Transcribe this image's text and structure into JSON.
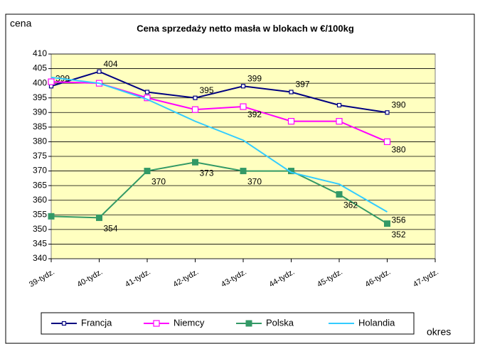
{
  "chart_data": {
    "type": "line",
    "title": "Cena sprzedaży netto masła w blokach w €/100kg",
    "y_label": "cena",
    "x_label": "okres",
    "categories": [
      "39-tydz.",
      "40-tydz.",
      "41-tydz.",
      "42-tydz.",
      "43-tydz.",
      "44-tydz.",
      "45-tydz.",
      "46-tydz.",
      "47-tydz."
    ],
    "series": [
      {
        "name": "Francja",
        "color": "#000080",
        "marker": "square",
        "values": [
          399,
          404,
          397,
          395,
          399,
          397,
          392.5,
          390,
          null
        ],
        "value_labels": [
          "399",
          "404",
          null,
          "395",
          "399",
          "397",
          null,
          "390",
          null
        ]
      },
      {
        "name": "Niemcy",
        "color": "#ff00ff",
        "marker": "hollow-square",
        "values": [
          400.5,
          400,
          395,
          391,
          392,
          387,
          387,
          380,
          null
        ],
        "value_labels": [
          null,
          null,
          null,
          null,
          "392",
          null,
          null,
          "380",
          null
        ]
      },
      {
        "name": "Polska",
        "color": "#339966",
        "marker": "filled-square",
        "values": [
          354.5,
          354,
          370,
          373,
          370,
          370,
          362,
          352,
          null
        ],
        "value_labels": [
          null,
          "354",
          "370",
          "373",
          "370",
          null,
          "362",
          "352",
          null
        ]
      },
      {
        "name": "Holandia",
        "color": "#33ccff",
        "marker": "none",
        "values": [
          402,
          400,
          394.5,
          387,
          380.5,
          369.5,
          365.5,
          356,
          null
        ],
        "value_labels": [
          null,
          null,
          null,
          null,
          null,
          null,
          null,
          "356",
          null
        ]
      }
    ],
    "ylim": [
      340,
      410
    ],
    "yticks": [
      340,
      345,
      350,
      355,
      360,
      365,
      370,
      375,
      380,
      385,
      390,
      395,
      400,
      405,
      410
    ],
    "grid": true,
    "legend": "bottom",
    "plot_background": "#ffffc0"
  }
}
